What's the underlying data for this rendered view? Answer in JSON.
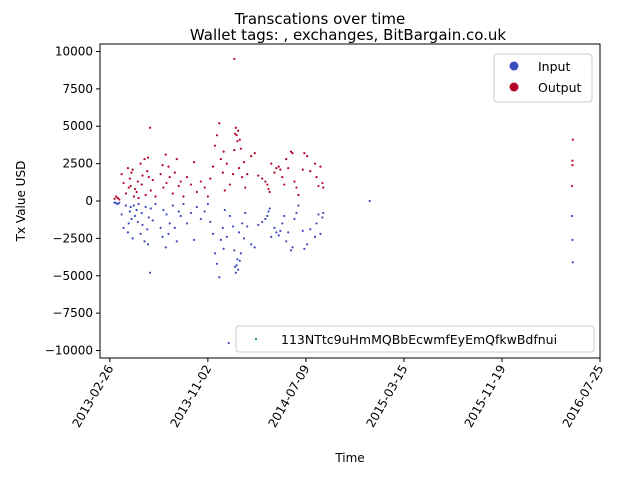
{
  "chart_data": {
    "type": "scatter",
    "title": "Transcations over time",
    "subtitle": "Wallet tags: , exchanges, BitBargain.co.uk",
    "xlabel": "Time",
    "ylabel": "Tx Value USD",
    "xlim": [
      "2013-02-01",
      "2016-07-25"
    ],
    "ylim": [
      -10500,
      10500
    ],
    "x_ticks": [
      "2013-02-26",
      "2013-11-02",
      "2014-07-09",
      "2015-03-15",
      "2015-11-19",
      "2016-07-25"
    ],
    "y_ticks": [
      10000,
      7500,
      5000,
      2500,
      0,
      -2500,
      -5000,
      -7500,
      -10000
    ],
    "y_tick_labels": [
      "10000",
      "7500",
      "5000",
      "2500",
      "0",
      "−2500",
      "−5000",
      "−7500",
      "−10000"
    ],
    "grid": false,
    "legend_top": {
      "position": "top-right",
      "entries": [
        "Input",
        "Output"
      ]
    },
    "legend_bottom": {
      "position": "bottom-right",
      "entries": [
        "113NTtc9uHmMQBbEcwmfEyEmQfkwBdfnui"
      ]
    },
    "colors": {
      "input": "#3b4cc0",
      "output": "#b40426",
      "address": "#2a9d8f"
    },
    "series": [
      {
        "name": "Input",
        "color": "#3b4cc0",
        "points": [
          [
            "2013-03-10",
            -100
          ],
          [
            "2013-03-14",
            -150
          ],
          [
            "2013-03-18",
            -200
          ],
          [
            "2013-03-22",
            -120
          ],
          [
            "2013-03-28",
            -900
          ],
          [
            "2013-04-02",
            -1800
          ],
          [
            "2013-04-08",
            -300
          ],
          [
            "2013-04-13",
            -2100
          ],
          [
            "2013-04-15",
            -1500
          ],
          [
            "2013-04-18",
            -700
          ],
          [
            "2013-04-20",
            -400
          ],
          [
            "2013-04-22",
            -1200
          ],
          [
            "2013-04-25",
            -2500
          ],
          [
            "2013-04-28",
            -300
          ],
          [
            "2013-05-01",
            -1000
          ],
          [
            "2013-05-05",
            -600
          ],
          [
            "2013-05-08",
            -1400
          ],
          [
            "2013-05-10",
            -200
          ],
          [
            "2013-05-15",
            -2200
          ],
          [
            "2013-05-18",
            -800
          ],
          [
            "2013-05-20",
            -1600
          ],
          [
            "2013-05-25",
            -2700
          ],
          [
            "2013-05-28",
            -400
          ],
          [
            "2013-06-01",
            -1900
          ],
          [
            "2013-06-03",
            -2900
          ],
          [
            "2013-06-05",
            -1100
          ],
          [
            "2013-06-08",
            -4800
          ],
          [
            "2013-06-10",
            -500
          ],
          [
            "2013-06-15",
            -1300
          ],
          [
            "2013-06-22",
            -200
          ],
          [
            "2013-07-05",
            -1800
          ],
          [
            "2013-07-10",
            -2400
          ],
          [
            "2013-07-12",
            -600
          ],
          [
            "2013-07-18",
            -3100
          ],
          [
            "2013-07-20",
            -900
          ],
          [
            "2013-07-25",
            -2200
          ],
          [
            "2013-07-28",
            -1500
          ],
          [
            "2013-08-05",
            -300
          ],
          [
            "2013-08-10",
            -1800
          ],
          [
            "2013-08-15",
            -2700
          ],
          [
            "2013-08-20",
            -700
          ],
          [
            "2013-08-25",
            -1000
          ],
          [
            "2013-09-01",
            -200
          ],
          [
            "2013-09-10",
            -1500
          ],
          [
            "2013-09-20",
            -800
          ],
          [
            "2013-09-28",
            -2600
          ],
          [
            "2013-10-05",
            -400
          ],
          [
            "2013-10-15",
            -1200
          ],
          [
            "2013-10-25",
            -700
          ],
          [
            "2013-11-02",
            -200
          ],
          [
            "2013-11-08",
            -1400
          ],
          [
            "2013-11-15",
            -2200
          ],
          [
            "2013-11-20",
            -3500
          ],
          [
            "2013-11-25",
            -4200
          ],
          [
            "2013-12-01",
            -5100
          ],
          [
            "2013-12-05",
            -2600
          ],
          [
            "2013-12-10",
            -1800
          ],
          [
            "2013-12-12",
            -3200
          ],
          [
            "2013-12-15",
            -600
          ],
          [
            "2013-12-20",
            -2400
          ],
          [
            "2013-12-28",
            -1000
          ],
          [
            "2014-01-05",
            -1700
          ],
          [
            "2014-01-08",
            -3300
          ],
          [
            "2014-01-10",
            -4400
          ],
          [
            "2014-01-12",
            -4800
          ],
          [
            "2014-01-14",
            -4300
          ],
          [
            "2014-01-16",
            -3900
          ],
          [
            "2014-01-18",
            -4600
          ],
          [
            "2014-01-20",
            -2100
          ],
          [
            "2014-01-22",
            -4000
          ],
          [
            "2014-01-25",
            -3500
          ],
          [
            "2014-01-28",
            -1500
          ],
          [
            "2014-02-02",
            -2500
          ],
          [
            "2014-02-05",
            -800
          ],
          [
            "2014-02-10",
            -1700
          ],
          [
            "2014-02-20",
            -2900
          ],
          [
            "2014-03-01",
            -3100
          ],
          [
            "2014-03-10",
            -1600
          ],
          [
            "2014-03-20",
            -1400
          ],
          [
            "2014-03-28",
            -1200
          ],
          [
            "2014-04-02",
            -1000
          ],
          [
            "2014-04-05",
            -700
          ],
          [
            "2014-04-08",
            -500
          ],
          [
            "2014-04-12",
            -2400
          ],
          [
            "2014-04-20",
            -1800
          ],
          [
            "2014-04-25",
            -2100
          ],
          [
            "2014-05-01",
            -2300
          ],
          [
            "2014-05-05",
            -2000
          ],
          [
            "2014-05-10",
            -1500
          ],
          [
            "2014-05-15",
            -1000
          ],
          [
            "2014-05-20",
            -2700
          ],
          [
            "2014-05-25",
            -2100
          ],
          [
            "2014-06-01",
            -3300
          ],
          [
            "2014-06-05",
            -3100
          ],
          [
            "2014-06-10",
            -1200
          ],
          [
            "2014-06-15",
            -800
          ],
          [
            "2014-06-20",
            -300
          ],
          [
            "2014-07-01",
            -2000
          ],
          [
            "2014-07-05",
            -3200
          ],
          [
            "2014-07-12",
            -2900
          ],
          [
            "2014-07-20",
            -1900
          ],
          [
            "2014-08-01",
            -2400
          ],
          [
            "2014-08-05",
            -1500
          ],
          [
            "2014-08-10",
            -900
          ],
          [
            "2014-08-15",
            -2200
          ],
          [
            "2014-08-20",
            -1100
          ],
          [
            "2014-08-22",
            -800
          ],
          [
            "2013-12-25",
            -9500
          ],
          [
            "2014-12-18",
            0
          ],
          [
            "2016-05-15",
            -1000
          ],
          [
            "2016-05-16",
            -2600
          ],
          [
            "2016-05-17",
            -4100
          ]
        ]
      },
      {
        "name": "Output",
        "color": "#b40426",
        "points": [
          [
            "2013-03-10",
            150
          ],
          [
            "2013-03-14",
            300
          ],
          [
            "2013-03-18",
            200
          ],
          [
            "2013-03-22",
            100
          ],
          [
            "2013-03-28",
            1800
          ],
          [
            "2013-04-02",
            1200
          ],
          [
            "2013-04-08",
            500
          ],
          [
            "2013-04-13",
            2200
          ],
          [
            "2013-04-15",
            900
          ],
          [
            "2013-04-18",
            1500
          ],
          [
            "2013-04-20",
            1000
          ],
          [
            "2013-04-22",
            1900
          ],
          [
            "2013-04-25",
            2100
          ],
          [
            "2013-04-28",
            300
          ],
          [
            "2013-05-01",
            800
          ],
          [
            "2013-05-05",
            600
          ],
          [
            "2013-05-08",
            1300
          ],
          [
            "2013-05-10",
            200
          ],
          [
            "2013-05-15",
            2500
          ],
          [
            "2013-05-18",
            1100
          ],
          [
            "2013-05-20",
            1700
          ],
          [
            "2013-05-25",
            2800
          ],
          [
            "2013-05-28",
            400
          ],
          [
            "2013-06-01",
            2000
          ],
          [
            "2013-06-03",
            2900
          ],
          [
            "2013-06-05",
            1600
          ],
          [
            "2013-06-08",
            4900
          ],
          [
            "2013-06-10",
            700
          ],
          [
            "2013-06-15",
            1400
          ],
          [
            "2013-06-22",
            300
          ],
          [
            "2013-07-05",
            1800
          ],
          [
            "2013-07-10",
            2400
          ],
          [
            "2013-07-12",
            900
          ],
          [
            "2013-07-18",
            3100
          ],
          [
            "2013-07-20",
            1200
          ],
          [
            "2013-07-25",
            2300
          ],
          [
            "2013-07-28",
            1600
          ],
          [
            "2013-08-05",
            500
          ],
          [
            "2013-08-10",
            1900
          ],
          [
            "2013-08-15",
            2800
          ],
          [
            "2013-08-20",
            1000
          ],
          [
            "2013-08-25",
            1300
          ],
          [
            "2013-09-01",
            300
          ],
          [
            "2013-09-10",
            1600
          ],
          [
            "2013-09-20",
            1100
          ],
          [
            "2013-09-28",
            2600
          ],
          [
            "2013-10-05",
            600
          ],
          [
            "2013-10-15",
            1300
          ],
          [
            "2013-10-25",
            900
          ],
          [
            "2013-11-02",
            300
          ],
          [
            "2013-11-08",
            1500
          ],
          [
            "2013-11-15",
            2300
          ],
          [
            "2013-11-20",
            3700
          ],
          [
            "2013-11-25",
            4400
          ],
          [
            "2013-12-01",
            5200
          ],
          [
            "2013-12-05",
            2800
          ],
          [
            "2013-12-10",
            1900
          ],
          [
            "2013-12-12",
            3300
          ],
          [
            "2013-12-15",
            700
          ],
          [
            "2013-12-20",
            2500
          ],
          [
            "2013-12-28",
            1100
          ],
          [
            "2014-01-05",
            1800
          ],
          [
            "2014-01-08",
            3400
          ],
          [
            "2014-01-10",
            4500
          ],
          [
            "2014-01-12",
            4900
          ],
          [
            "2014-01-14",
            4400
          ],
          [
            "2014-01-16",
            4000
          ],
          [
            "2014-01-18",
            4700
          ],
          [
            "2014-01-20",
            2200
          ],
          [
            "2014-01-22",
            4100
          ],
          [
            "2014-01-25",
            3500
          ],
          [
            "2014-01-28",
            1600
          ],
          [
            "2014-02-02",
            2600
          ],
          [
            "2014-02-05",
            900
          ],
          [
            "2014-02-10",
            1800
          ],
          [
            "2014-02-20",
            3000
          ],
          [
            "2014-03-01",
            3200
          ],
          [
            "2014-03-10",
            1700
          ],
          [
            "2014-03-20",
            1500
          ],
          [
            "2014-03-28",
            1300
          ],
          [
            "2014-04-02",
            1100
          ],
          [
            "2014-04-05",
            800
          ],
          [
            "2014-04-08",
            600
          ],
          [
            "2014-04-12",
            2500
          ],
          [
            "2014-04-20",
            1900
          ],
          [
            "2014-04-25",
            2200
          ],
          [
            "2014-05-01",
            2300
          ],
          [
            "2014-05-05",
            2100
          ],
          [
            "2014-05-10",
            1600
          ],
          [
            "2014-05-15",
            1100
          ],
          [
            "2014-05-20",
            2800
          ],
          [
            "2014-05-25",
            2200
          ],
          [
            "2014-06-01",
            3300
          ],
          [
            "2014-06-05",
            3200
          ],
          [
            "2014-06-10",
            1300
          ],
          [
            "2014-06-15",
            900
          ],
          [
            "2014-06-20",
            400
          ],
          [
            "2014-07-01",
            2100
          ],
          [
            "2014-07-05",
            3200
          ],
          [
            "2014-07-12",
            3000
          ],
          [
            "2014-07-20",
            2000
          ],
          [
            "2014-08-01",
            2500
          ],
          [
            "2014-08-05",
            1600
          ],
          [
            "2014-08-10",
            1000
          ],
          [
            "2014-08-15",
            2300
          ],
          [
            "2014-08-20",
            1200
          ],
          [
            "2014-08-22",
            900
          ],
          [
            "2014-01-08",
            9500
          ],
          [
            "2016-05-15",
            1000
          ],
          [
            "2016-05-16",
            2400
          ],
          [
            "2016-05-17",
            4100
          ],
          [
            "2016-05-16",
            2700
          ]
        ]
      }
    ]
  }
}
